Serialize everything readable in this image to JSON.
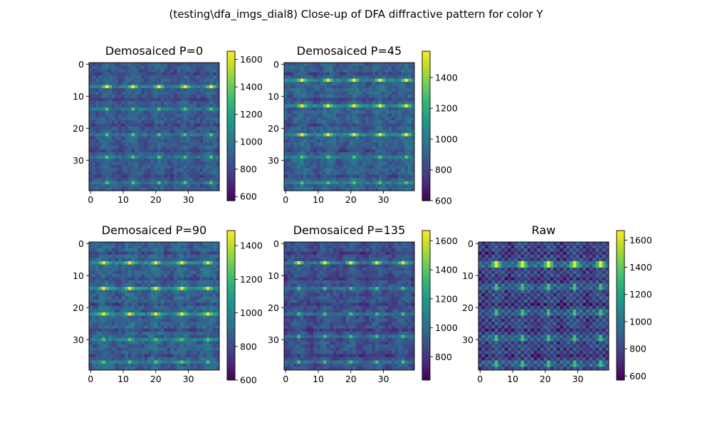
{
  "suptitle": "(testing\\dfa_imgs_dial8) Close-up of DFA diffractive pattern for color Y",
  "colors": {
    "background": "#ffffff",
    "axis": "#000000",
    "colormap": "viridis",
    "viridis_stops": [
      "#440154",
      "#482878",
      "#3e4989",
      "#31688e",
      "#26828e",
      "#1f9e89",
      "#35b779",
      "#6ece58",
      "#b5de2b",
      "#fde725"
    ]
  },
  "chart_data": [
    {
      "type": "heatmap",
      "title": "Demosaiced P=0",
      "grid_size": 40,
      "x_ticks": [
        "0",
        "10",
        "20",
        "30"
      ],
      "y_ticks": [
        "0",
        "10",
        "20",
        "30"
      ],
      "xlim": [
        -0.5,
        39.5
      ],
      "ylim": [
        39.5,
        -0.5
      ],
      "grid": false,
      "colorbar": {
        "min": 570,
        "max": 1660,
        "ticks": [
          "600",
          "800",
          "1000",
          "1200",
          "1400",
          "1600"
        ]
      },
      "pattern": {
        "kind": "demosaiced",
        "bright_rows": [
          7
        ],
        "mid_rows": [
          14,
          22,
          29,
          37
        ],
        "col_period": 8,
        "col_offset": 5,
        "peak": 1640,
        "base": 880
      }
    },
    {
      "type": "heatmap",
      "title": "Demosaiced P=45",
      "grid_size": 40,
      "x_ticks": [
        "0",
        "10",
        "20",
        "30"
      ],
      "y_ticks": [
        "0",
        "10",
        "20",
        "30"
      ],
      "xlim": [
        -0.5,
        39.5
      ],
      "ylim": [
        39.5,
        -0.5
      ],
      "grid": false,
      "colorbar": {
        "min": 600,
        "max": 1570,
        "ticks": [
          "600",
          "800",
          "1000",
          "1200",
          "1400"
        ]
      },
      "pattern": {
        "kind": "demosaiced",
        "bright_rows": [
          5,
          13,
          22
        ],
        "mid_rows": [
          29,
          37
        ],
        "col_period": 8,
        "col_offset": 5,
        "peak": 1550,
        "base": 900
      }
    },
    {
      "type": "heatmap",
      "title": "Demosaiced P=90",
      "grid_size": 40,
      "x_ticks": [
        "0",
        "10",
        "20",
        "30"
      ],
      "y_ticks": [
        "0",
        "10",
        "20",
        "30"
      ],
      "xlim": [
        -0.5,
        39.5
      ],
      "ylim": [
        39.5,
        -0.5
      ],
      "grid": false,
      "colorbar": {
        "min": 600,
        "max": 1490,
        "ticks": [
          "600",
          "800",
          "1000",
          "1200",
          "1400"
        ]
      },
      "pattern": {
        "kind": "demosaiced",
        "bright_rows": [
          6,
          14,
          22
        ],
        "mid_rows": [
          30,
          37
        ],
        "col_period": 8,
        "col_offset": 4,
        "peak": 1470,
        "base": 880
      }
    },
    {
      "type": "heatmap",
      "title": "Demosaiced P=135",
      "grid_size": 40,
      "x_ticks": [
        "0",
        "10",
        "20",
        "30"
      ],
      "y_ticks": [
        "0",
        "10",
        "20",
        "30"
      ],
      "xlim": [
        -0.5,
        39.5
      ],
      "ylim": [
        39.5,
        -0.5
      ],
      "grid": false,
      "colorbar": {
        "min": 640,
        "max": 1670,
        "ticks": [
          "800",
          "1000",
          "1200",
          "1400",
          "1600"
        ]
      },
      "pattern": {
        "kind": "demosaiced",
        "bright_rows": [
          6
        ],
        "mid_rows": [
          14,
          22,
          29,
          37
        ],
        "col_period": 8,
        "col_offset": 4,
        "peak": 1640,
        "base": 900
      }
    },
    {
      "type": "heatmap",
      "title": "Raw",
      "grid_size": 40,
      "x_ticks": [
        "0",
        "10",
        "20",
        "30"
      ],
      "y_ticks": [
        "0",
        "10",
        "20",
        "30"
      ],
      "xlim": [
        -0.5,
        39.5
      ],
      "ylim": [
        39.5,
        -0.5
      ],
      "grid": false,
      "colorbar": {
        "min": 570,
        "max": 1670,
        "ticks": [
          "600",
          "800",
          "1000",
          "1200",
          "1400",
          "1600"
        ]
      },
      "pattern": {
        "kind": "raw",
        "bright_rows": [
          6,
          7
        ],
        "mid_rows": [
          13,
          14,
          21,
          22,
          29,
          30,
          37,
          38
        ],
        "col_period": 8,
        "col_offset": 5,
        "peak": 1650,
        "base": 820
      }
    }
  ]
}
